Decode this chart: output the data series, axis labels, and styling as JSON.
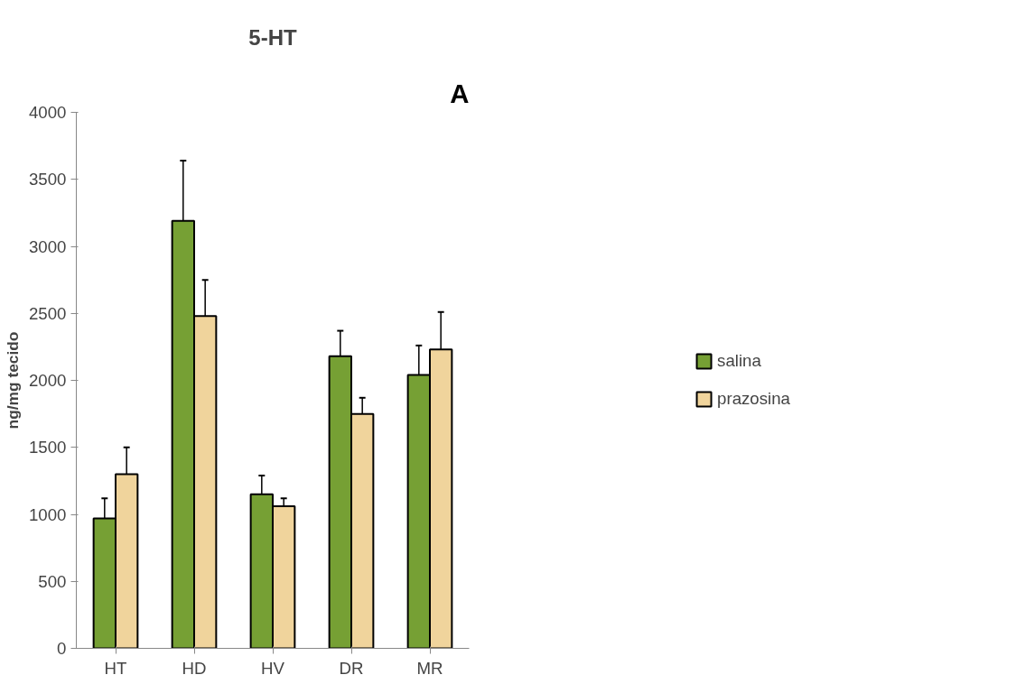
{
  "chart_data": {
    "type": "bar",
    "title": "5-HT",
    "ylabel": "ng/mg tecido",
    "categories": [
      "HT",
      "HD",
      "HV",
      "DR",
      "MR"
    ],
    "series": [
      {
        "name": "salina",
        "color": "#76a034",
        "values": [
          970,
          3190,
          1150,
          2180,
          2040
        ],
        "errors": [
          [
            970,
            1120
          ],
          [
            3190,
            3640
          ],
          [
            1150,
            1290
          ],
          [
            2180,
            2370
          ],
          [
            2040,
            2260
          ]
        ]
      },
      {
        "name": "prazosina",
        "color": "#f0d49c",
        "values": [
          1300,
          2480,
          1060,
          1750,
          2230
        ],
        "errors": [
          [
            1300,
            1500
          ],
          [
            2480,
            2750
          ],
          [
            1060,
            1120
          ],
          [
            1750,
            1870
          ],
          [
            2230,
            2510
          ]
        ]
      }
    ],
    "ylim": [
      0,
      4000
    ],
    "yticks": [
      0,
      500,
      1000,
      1500,
      2000,
      2500,
      3000,
      3500,
      4000
    ],
    "grid": false,
    "legend": "right",
    "annotations": [
      "A"
    ]
  }
}
